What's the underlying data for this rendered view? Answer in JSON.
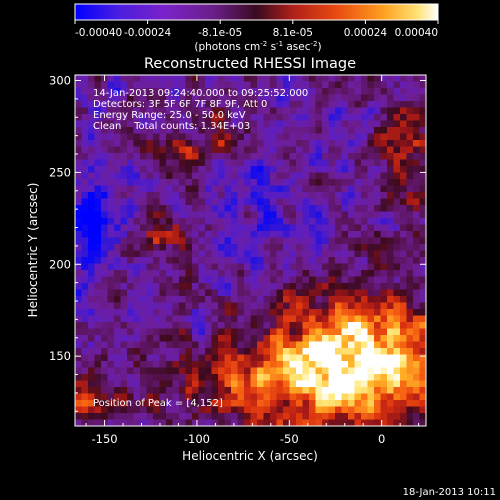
{
  "colors": {
    "background": "#000000",
    "foreground": "#ffffff",
    "colormap": [
      "#0000ff",
      "#5a1fd6",
      "#7a22c8",
      "#6a1f9a",
      "#5a1a70",
      "#8a2050",
      "#c02a20",
      "#e84a10",
      "#ff8c1a",
      "#ffc040",
      "#ffffaa",
      "#ffffff"
    ]
  },
  "colorbar": {
    "ticks": [
      "-0.00040",
      "-0.00024",
      "-8.1e-05",
      "8.1e-05",
      "0.00024",
      "0.00040"
    ],
    "unit_parts": {
      "a": "(photons cm",
      "a_sup": "-2",
      "b": " s",
      "b_sup": "-1",
      "c": " asec",
      "c_sup": "-2",
      "d": ")"
    }
  },
  "chart_data": {
    "type": "heatmap",
    "title": "Reconstructed RHESSI Image",
    "xlabel": "Heliocentric X (arcsec)",
    "ylabel": "Heliocentric Y (arcsec)",
    "xlim": [
      -166,
      24
    ],
    "ylim": [
      112,
      303
    ],
    "xticks": [
      "-150",
      "-100",
      "-50",
      "0"
    ],
    "yticks": [
      "150",
      "200",
      "250",
      "300"
    ],
    "xtick_values": [
      -150,
      -100,
      -50,
      0
    ],
    "ytick_values": [
      150,
      200,
      250,
      300
    ],
    "value_range": [
      -0.0004,
      0.0004
    ],
    "annotations": {
      "time": "14-Jan-2013 09:24:40.000 to 09:25:52.000",
      "detectors": "Detectors: 3F 5F 6F 7F 8F 9F, Att 0",
      "energy": "Energy Range: 25.0 - 50.0 keV",
      "method": "Clean    Total counts: 1.34E+03",
      "peak": "Position of Peak = [4,152]"
    },
    "peak_position": [
      4,
      152
    ]
  },
  "footer": {
    "date": "18-Jan-2013 10:11"
  }
}
